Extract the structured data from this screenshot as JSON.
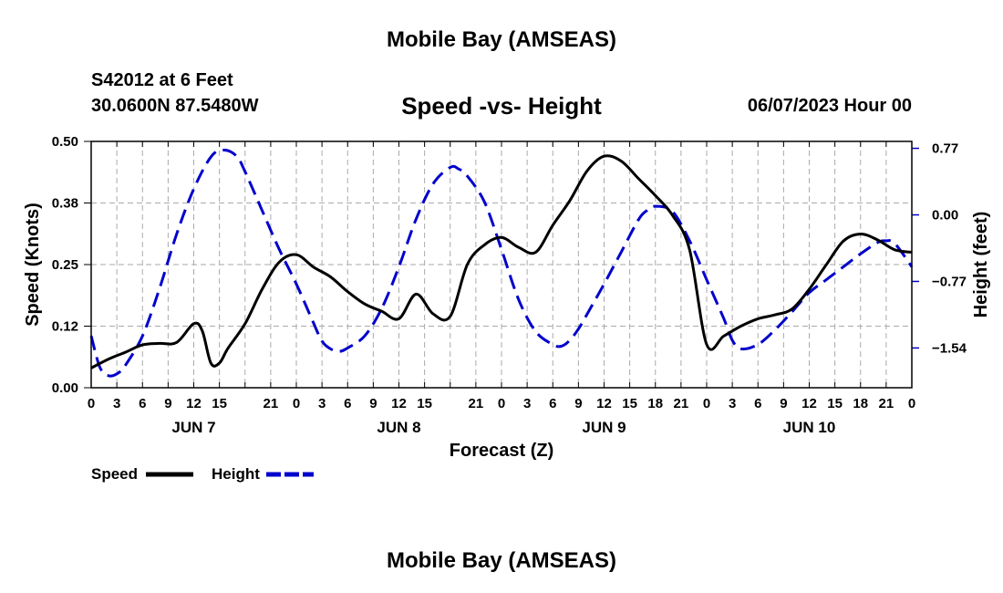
{
  "header": {
    "main_title": "Mobile Bay (AMSEAS)",
    "station": "S42012 at 6 Feet",
    "coords": "30.0600N  87.5480W",
    "datetime": "06/07/2023 Hour 00"
  },
  "footer": {
    "title": "Mobile Bay (AMSEAS)"
  },
  "colors": {
    "speed": "#000000",
    "height": "#0000cc",
    "grid": "#aaaaaa"
  },
  "chart_data": {
    "type": "line",
    "title": "Speed -vs- Height",
    "xlabel": "Forecast (Z)",
    "ylabel": "Speed (Knots)",
    "y2label": "Height (feet)",
    "x_range_hours": [
      0,
      96
    ],
    "x_tick_labels": [
      "0",
      "3",
      "6",
      "9",
      "12",
      "15",
      "21",
      "0",
      "3",
      "6",
      "9",
      "12",
      "15",
      "21",
      "0",
      "3",
      "6",
      "9",
      "12",
      "15",
      "18",
      "21",
      "0",
      "3",
      "6",
      "9",
      "12",
      "15",
      "18",
      "21",
      "0"
    ],
    "day_labels": [
      "JUN 7",
      "JUN 8",
      "JUN 9",
      "JUN 10"
    ],
    "ylim": [
      0,
      0.5
    ],
    "y_tick_labels": [
      "0.00",
      "0.12",
      "0.25",
      "0.38",
      "0.50"
    ],
    "y2lim": [
      -2.0,
      0.85
    ],
    "y2_tick_labels": [
      "0.77",
      "0.00",
      "−0.77",
      "−1.54"
    ],
    "grid": true,
    "legend_position": "bottom-left",
    "series": [
      {
        "name": "Speed",
        "axis": "left",
        "style": "solid",
        "x": [
          0,
          2,
          4,
          6,
          8,
          10,
          12,
          13,
          14,
          15,
          16,
          18,
          20,
          22,
          24,
          26,
          28,
          30,
          32,
          34,
          36,
          38,
          40,
          42,
          44,
          46,
          48,
          50,
          52,
          54,
          56,
          58,
          60,
          62,
          64,
          66,
          68,
          70,
          72,
          74,
          76,
          78,
          80,
          82,
          84,
          86,
          88,
          90,
          92,
          94,
          96
        ],
        "y": [
          0.04,
          0.058,
          0.072,
          0.087,
          0.09,
          0.092,
          0.13,
          0.115,
          0.05,
          0.05,
          0.08,
          0.13,
          0.2,
          0.255,
          0.27,
          0.245,
          0.225,
          0.195,
          0.17,
          0.155,
          0.14,
          0.19,
          0.15,
          0.145,
          0.25,
          0.29,
          0.305,
          0.285,
          0.275,
          0.33,
          0.38,
          0.44,
          0.47,
          0.46,
          0.425,
          0.39,
          0.35,
          0.28,
          0.088,
          0.105,
          0.125,
          0.14,
          0.148,
          0.16,
          0.2,
          0.25,
          0.298,
          0.312,
          0.3,
          0.28,
          0.275
        ]
      },
      {
        "name": "Height",
        "axis": "right",
        "style": "dashed",
        "x": [
          0,
          1,
          2,
          3,
          4,
          6,
          8,
          10,
          12,
          14,
          15.5,
          17,
          18,
          20,
          22,
          24,
          26,
          27,
          28,
          29,
          30,
          32,
          34,
          36,
          38,
          40,
          42,
          43,
          44,
          46,
          48,
          50,
          52,
          54,
          55,
          56,
          57,
          58,
          60,
          62,
          64,
          65,
          66,
          68,
          70,
          72,
          74,
          75,
          76,
          78,
          80,
          82,
          84,
          86,
          88,
          90,
          92,
          93,
          94,
          96
        ],
        "y": [
          -1.4,
          -1.76,
          -1.86,
          -1.84,
          -1.74,
          -1.4,
          -0.85,
          -0.22,
          0.3,
          0.67,
          0.75,
          0.68,
          0.5,
          0.05,
          -0.4,
          -0.8,
          -1.25,
          -1.46,
          -1.55,
          -1.58,
          -1.54,
          -1.4,
          -1.08,
          -0.6,
          -0.05,
          0.36,
          0.55,
          0.53,
          0.45,
          0.15,
          -0.4,
          -0.98,
          -1.35,
          -1.5,
          -1.52,
          -1.45,
          -1.32,
          -1.15,
          -0.8,
          -0.43,
          -0.06,
          0.05,
          0.1,
          0.04,
          -0.3,
          -0.75,
          -1.2,
          -1.45,
          -1.55,
          -1.5,
          -1.33,
          -1.12,
          -0.9,
          -0.75,
          -0.6,
          -0.45,
          -0.32,
          -0.3,
          -0.33,
          -0.6
        ]
      }
    ]
  }
}
